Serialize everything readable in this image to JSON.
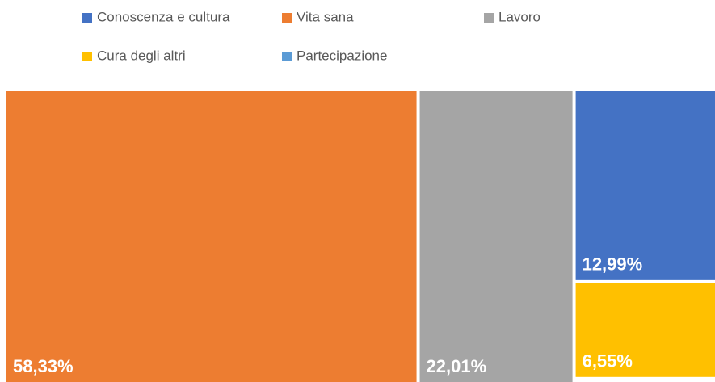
{
  "chart_data": {
    "type": "treemap",
    "categories": [
      "Conoscenza e cultura",
      "Vita sana",
      "Lavoro",
      "Cura degli altri",
      "Partecipazione"
    ],
    "values": [
      12.99,
      58.33,
      22.01,
      6.55,
      0.12
    ],
    "value_labels": [
      "12,99%",
      "58,33%",
      "22,01%",
      "6,55%",
      null
    ],
    "colors": [
      "#4472c4",
      "#ed7d31",
      "#a5a5a5",
      "#ffc000",
      "#5b9bd5"
    ],
    "legend": "top"
  }
}
